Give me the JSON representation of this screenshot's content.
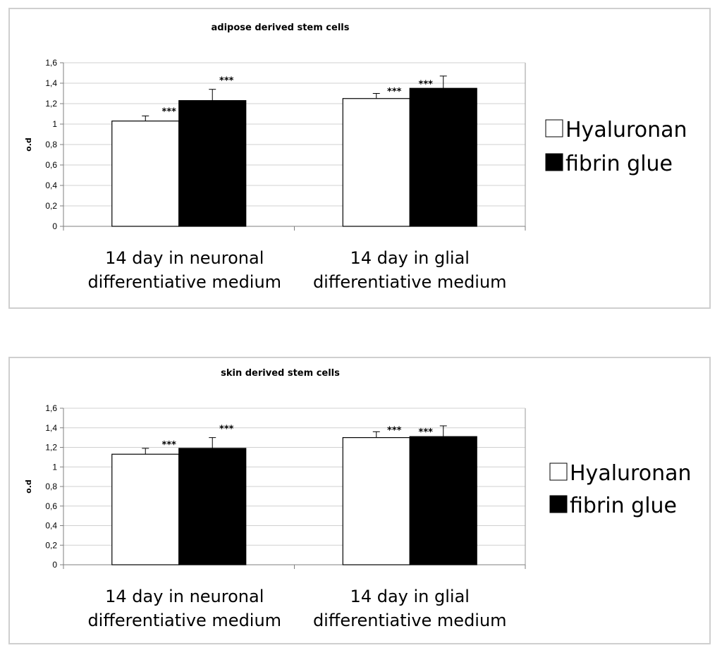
{
  "chart_data": [
    {
      "type": "bar",
      "title": "adipose derived stem cells",
      "ylabel": "o.d",
      "xlabel": "",
      "ylim": [
        0,
        1.6
      ],
      "ytick_labels": [
        "0",
        "0,2",
        "0,4",
        "0,6",
        "0,8",
        "1",
        "1,2",
        "1,4",
        "1,6"
      ],
      "categories": [
        [
          "14 day in neuronal",
          "differentiative medium"
        ],
        [
          "14 day in glial",
          "differentiative medium"
        ]
      ],
      "series": [
        {
          "name": "Hyaluronan",
          "color": "#ffffff",
          "values": [
            1.03,
            1.25
          ],
          "errors": [
            0.05,
            0.05
          ],
          "annotations": [
            "***",
            "***"
          ]
        },
        {
          "name": "fibrin glue",
          "color": "#000000",
          "values": [
            1.23,
            1.35
          ],
          "errors": [
            0.11,
            0.12
          ],
          "annotations": [
            "***",
            "***"
          ]
        }
      ],
      "grid": true,
      "legend_position": "right"
    },
    {
      "type": "bar",
      "title": "skin derived stem cells",
      "ylabel": "o.d",
      "xlabel": "",
      "ylim": [
        0,
        1.6
      ],
      "ytick_labels": [
        "0",
        "0,2",
        "0,4",
        "0,6",
        "0,8",
        "1",
        "1,2",
        "1,4",
        "1,6"
      ],
      "categories": [
        [
          "14 day in neuronal",
          "differentiative medium"
        ],
        [
          "14 day in glial",
          "differentiative medium"
        ]
      ],
      "series": [
        {
          "name": "Hyaluronan",
          "color": "#ffffff",
          "values": [
            1.13,
            1.3
          ],
          "errors": [
            0.06,
            0.06
          ],
          "annotations": [
            "***",
            "***"
          ]
        },
        {
          "name": "fibrin glue",
          "color": "#000000",
          "values": [
            1.19,
            1.31
          ],
          "errors": [
            0.11,
            0.11
          ],
          "annotations": [
            "***",
            "***"
          ]
        }
      ],
      "grid": true,
      "legend_position": "right"
    }
  ]
}
